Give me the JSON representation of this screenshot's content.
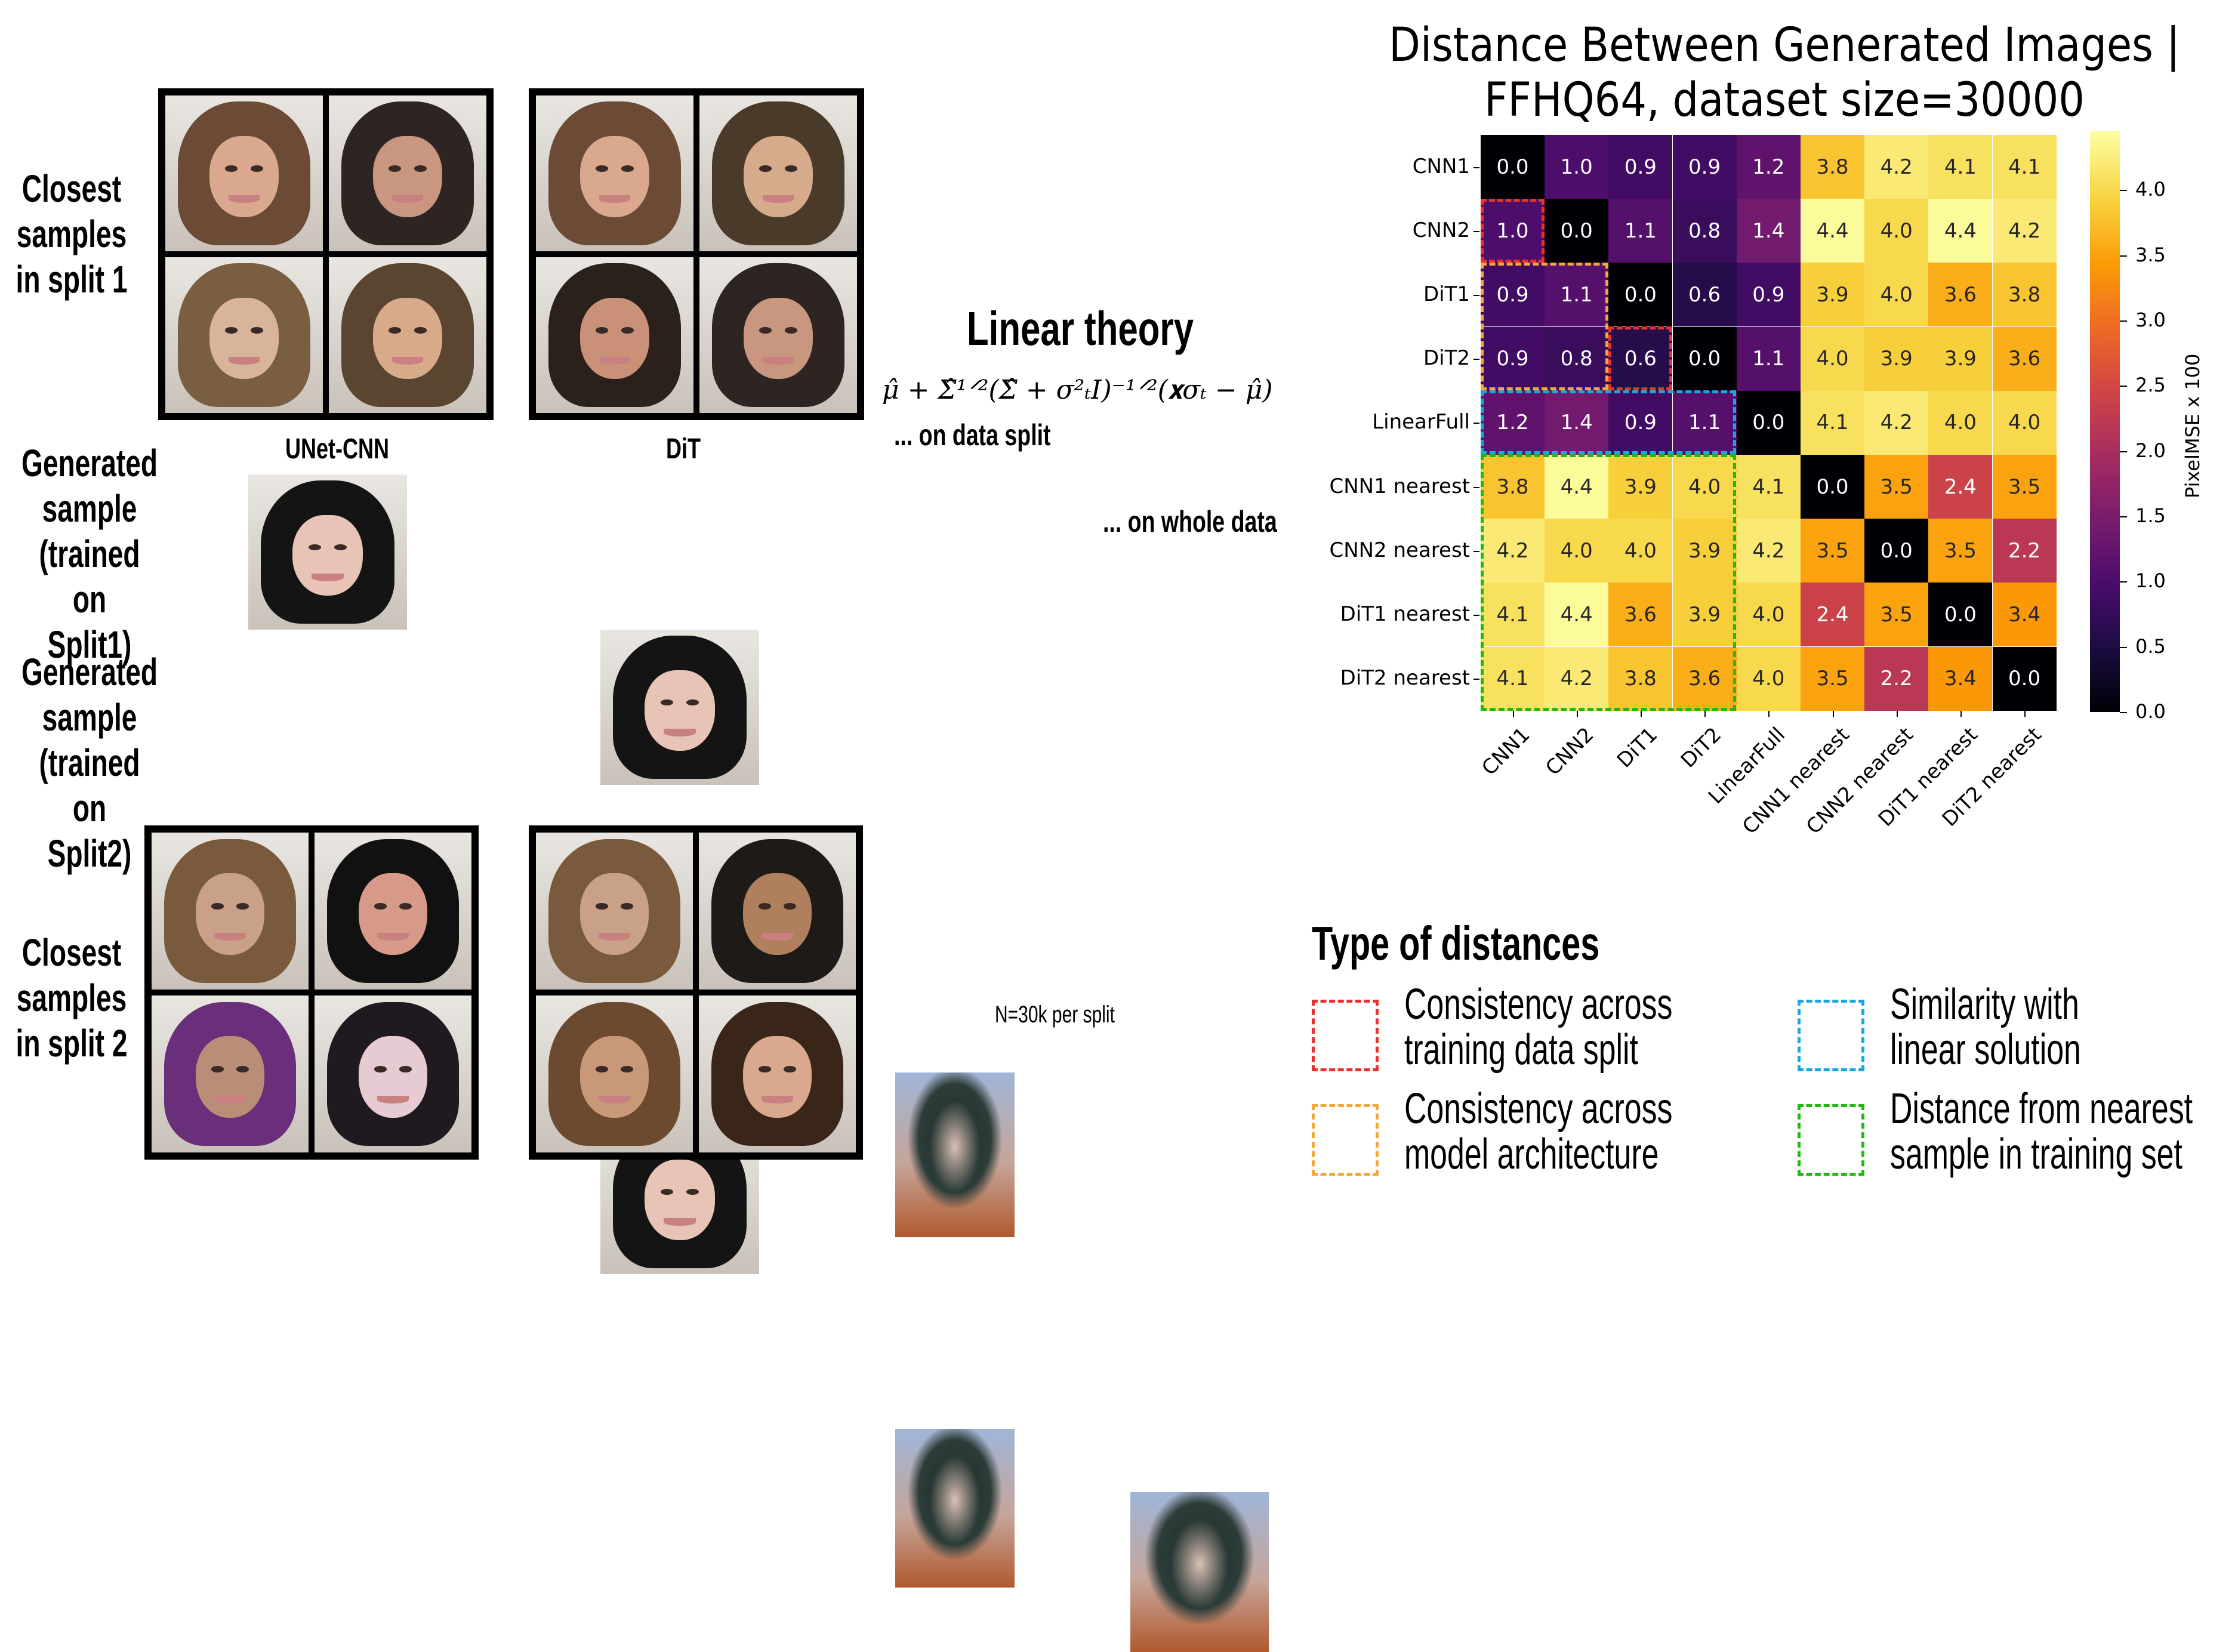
{
  "left_panel": {
    "row_labels": {
      "closest_split1": "Closest samples in split 1",
      "generated_split1": "Generated sample (trained on Split1)",
      "generated_split2": "Generated sample (trained on Split2)",
      "closest_split2": "Closest samples in split 2"
    },
    "row_label_lines": {
      "closest_split1": [
        "Closest",
        "samples",
        "in split 1"
      ],
      "generated_split1": [
        "Generated",
        "sample",
        "(trained on",
        "Split1)"
      ],
      "generated_split2": [
        "Generated",
        "sample",
        "(trained on",
        "Split2)"
      ],
      "closest_split2": [
        "Closest",
        "samples",
        "in split 2"
      ]
    },
    "column_headers": {
      "cnn": "UNet-CNN",
      "dit": "DiT"
    },
    "linear": {
      "title": "Linear theory",
      "formula": "μ̂ + Σ̂^{1/2}(Σ̂ + σ_T² I)^{−1/2}(x_{σ_T} − μ̂)",
      "formula_display": "μ̂ + Σ̂¹ᐟ²(Σ̂ + σ²ₜI)⁻¹ᐟ²(𝐱σₜ − μ̂)",
      "on_data_split": "... on data split",
      "on_whole_data": "... on whole data"
    },
    "note": "N=30k per split",
    "face_palettes": {
      "split1_cnn": [
        [
          "#6b4a36",
          "#d9a88e"
        ],
        [
          "#2e2422",
          "#c99780"
        ],
        [
          "#7a5e42",
          "#d8b59a"
        ],
        [
          "#5a4630",
          "#d9aa8a"
        ]
      ],
      "split1_dit": [
        [
          "#6b4a36",
          "#d9a88e"
        ],
        [
          "#4a3a2a",
          "#d6ab8c"
        ],
        [
          "#2a201c",
          "#c99278"
        ],
        [
          "#2e2422",
          "#c99780"
        ]
      ],
      "generated": [
        [
          "#141414",
          "#e8c4b6"
        ],
        [
          "#141414",
          "#e8c4b6"
        ],
        [
          "#141414",
          "#e8c4b6"
        ],
        [
          "#141414",
          "#e8c4b6"
        ]
      ],
      "split2_cnn": [
        [
          "#7a5a3c",
          "#c9a088"
        ],
        [
          "#111111",
          "#d89a88"
        ],
        [
          "#6a2f7a",
          "#b98e78"
        ],
        [
          "#1e1a20",
          "#e6ccd2"
        ]
      ],
      "split2_dit": [
        [
          "#7a5a3c",
          "#c9a088"
        ],
        [
          "#1e1a18",
          "#b0805e"
        ],
        [
          "#6b4a30",
          "#c99878"
        ],
        [
          "#3a2618",
          "#d9a88e"
        ]
      ]
    }
  },
  "chart_data": {
    "type": "heatmap",
    "title": "Distance Between Generated Images | FFHQ64, dataset size=30000",
    "title_lines": [
      "Distance Between Generated Images |",
      "FFHQ64, dataset size=30000"
    ],
    "x_labels": [
      "CNN1",
      "CNN2",
      "DiT1",
      "DiT2",
      "LinearFull",
      "CNN1 nearest",
      "CNN2 nearest",
      "DiT1 nearest",
      "DiT2 nearest"
    ],
    "y_labels": [
      "CNN1",
      "CNN2",
      "DiT1",
      "DiT2",
      "LinearFull",
      "CNN1 nearest",
      "CNN2 nearest",
      "DiT1 nearest",
      "DiT2 nearest"
    ],
    "values": [
      [
        0.0,
        1.0,
        0.9,
        0.9,
        1.2,
        3.8,
        4.2,
        4.1,
        4.1
      ],
      [
        1.0,
        0.0,
        1.1,
        0.8,
        1.4,
        4.4,
        4.0,
        4.4,
        4.2
      ],
      [
        0.9,
        1.1,
        0.0,
        0.6,
        0.9,
        3.9,
        4.0,
        3.6,
        3.8
      ],
      [
        0.9,
        0.8,
        0.6,
        0.0,
        1.1,
        4.0,
        3.9,
        3.9,
        3.6
      ],
      [
        1.2,
        1.4,
        0.9,
        1.1,
        0.0,
        4.1,
        4.2,
        4.0,
        4.0
      ],
      [
        3.8,
        4.4,
        3.9,
        4.0,
        4.1,
        0.0,
        3.5,
        2.4,
        3.5
      ],
      [
        4.2,
        4.0,
        4.0,
        3.9,
        4.2,
        3.5,
        0.0,
        3.5,
        2.2
      ],
      [
        4.1,
        4.4,
        3.6,
        3.9,
        4.0,
        2.4,
        3.5,
        0.0,
        3.4
      ],
      [
        4.1,
        4.2,
        3.8,
        3.6,
        4.0,
        3.5,
        2.2,
        3.4,
        0.0
      ]
    ],
    "colormap": "inferno",
    "colorbar": {
      "label": "PixelMSE x 100",
      "ticks": [
        "0.0",
        "0.5",
        "1.0",
        "1.5",
        "2.0",
        "2.5",
        "3.0",
        "3.5",
        "4.0"
      ],
      "range": [
        0.0,
        4.45
      ]
    },
    "highlight_boxes": [
      {
        "color": "#e8322f",
        "type": "Consistency across training data split",
        "cells": "row CNN2, col CNN1"
      },
      {
        "color": "#e8322f",
        "type": "Consistency across training data split",
        "cells": "row DiT2, col DiT1"
      },
      {
        "color": "#f2a93b",
        "type": "Consistency across model architecture",
        "cells": "rows DiT1-DiT2, cols CNN1-CNN2"
      },
      {
        "color": "#1aa7e0",
        "type": "Similarity with linear solution",
        "cells": "row LinearFull, cols CNN1-DiT2"
      },
      {
        "color": "#22b80f",
        "type": "Distance from nearest sample in training set",
        "cells": "rows CNN1 nearest-DiT2 nearest, cols CNN1-DiT2"
      }
    ]
  },
  "legend": {
    "title": "Type of distances",
    "items": [
      {
        "lines": [
          "Consistency across",
          "training data split"
        ],
        "color": "#e8322f"
      },
      {
        "lines": [
          "Consistency across",
          "model architecture"
        ],
        "color": "#f2a93b"
      },
      {
        "lines": [
          "Similarity with",
          "linear solution"
        ],
        "color": "#1aa7e0"
      },
      {
        "lines": [
          "Distance from nearest",
          "sample in training set"
        ],
        "color": "#22b80f"
      }
    ]
  }
}
